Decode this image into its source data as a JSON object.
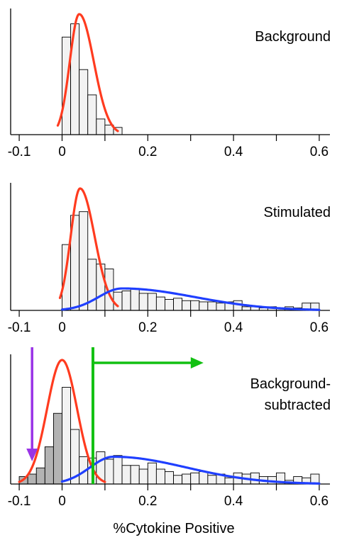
{
  "figure": {
    "xlabel": "%Cytokine Positive"
  },
  "chart_data": [
    {
      "type": "histogram",
      "label": "Background",
      "xlim": [
        -0.12,
        0.62
      ],
      "xticks": [
        -0.1,
        0,
        0.2,
        0.4,
        0.6
      ],
      "tick_labels": [
        "-0.1",
        "0",
        "0.2",
        "0.4",
        "0.6"
      ],
      "bin_width": 0.02,
      "bins_start": [
        0,
        0.02,
        0.04,
        0.06,
        0.08,
        0.1,
        0.12
      ],
      "counts": [
        0.81,
        0.92,
        0.54,
        0.33,
        0.13,
        0.08,
        0.06
      ],
      "curves": [
        {
          "color": "#ff3b1f",
          "center": 0.04,
          "peak": 1.0,
          "sigma_left": 0.022,
          "sigma_right": 0.034,
          "x_from": -0.01,
          "x_to": 0.13
        }
      ],
      "fills": [],
      "arrows": []
    },
    {
      "type": "histogram",
      "label": "Stimulated",
      "xlim": [
        -0.12,
        0.62
      ],
      "xticks": [
        -0.1,
        0,
        0.2,
        0.4,
        0.6
      ],
      "tick_labels": [
        "-0.1",
        "0",
        "0.2",
        "0.4",
        "0.6"
      ],
      "bin_width": 0.02,
      "bins_start": [
        0,
        0.02,
        0.04,
        0.06,
        0.08,
        0.1,
        0.12,
        0.14,
        0.16,
        0.18,
        0.2,
        0.22,
        0.24,
        0.26,
        0.28,
        0.3,
        0.32,
        0.34,
        0.36,
        0.38,
        0.4,
        0.42,
        0.44,
        0.46,
        0.48,
        0.5,
        0.52,
        0.54,
        0.56,
        0.58
      ],
      "counts": [
        0.54,
        0.78,
        0.81,
        0.42,
        0.38,
        0.34,
        0.15,
        0.16,
        0.18,
        0.14,
        0.14,
        0.11,
        0.09,
        0.1,
        0.08,
        0.08,
        0.07,
        0.07,
        0.06,
        0.07,
        0.08,
        0.03,
        0.03,
        0.02,
        0.03,
        0.02,
        0.03,
        0.02,
        0.06,
        0.06
      ],
      "curves": [
        {
          "color": "#ff3b1f",
          "center": 0.042,
          "peak": 1.0,
          "sigma_left": 0.022,
          "sigma_right": 0.034,
          "x_from": -0.005,
          "x_to": 0.13
        },
        {
          "color": "#1f3fff",
          "center": 0.14,
          "peak": 0.18,
          "sigma_left": 0.055,
          "sigma_right": 0.17,
          "x_from": 0.0,
          "x_to": 0.6
        }
      ],
      "fills": [],
      "arrows": []
    },
    {
      "type": "histogram",
      "label": "Background-\nsubtracted",
      "xlim": [
        -0.12,
        0.62
      ],
      "xticks": [
        -0.1,
        0,
        0.2,
        0.4,
        0.6
      ],
      "tick_labels": [
        "-0.1",
        "0",
        "0.2",
        "0.4",
        "0.6"
      ],
      "bin_width": 0.02,
      "bins_start": [
        -0.1,
        -0.08,
        -0.06,
        -0.04,
        -0.02,
        0,
        0.02,
        0.04,
        0.06,
        0.08,
        0.1,
        0.12,
        0.14,
        0.16,
        0.18,
        0.2,
        0.22,
        0.24,
        0.26,
        0.28,
        0.3,
        0.32,
        0.34,
        0.36,
        0.38,
        0.4,
        0.42,
        0.44,
        0.46,
        0.48,
        0.5,
        0.52,
        0.54,
        0.56,
        0.58
      ],
      "counts": [
        0.06,
        0.08,
        0.13,
        0.3,
        0.57,
        0.78,
        0.44,
        0.22,
        0.21,
        0.26,
        0.2,
        0.23,
        0.15,
        0.15,
        0.12,
        0.17,
        0.12,
        0.1,
        0.07,
        0.08,
        0.09,
        0.1,
        0.07,
        0.08,
        0.05,
        0.09,
        0.08,
        0.09,
        0.06,
        0.06,
        0.09,
        0.03,
        0.06,
        0.05,
        0.08
      ],
      "shaded_below": 0.0,
      "shade_color": "#b3b3b3",
      "curves": [
        {
          "color": "#ff3b1f",
          "center": 0.0,
          "peak": 1.0,
          "sigma_left": 0.035,
          "sigma_right": 0.035,
          "x_from": -0.1,
          "x_to": 0.1
        },
        {
          "color": "#1f3fff",
          "center": 0.12,
          "peak": 0.22,
          "sigma_left": 0.055,
          "sigma_right": 0.17,
          "x_from": 0.0,
          "x_to": 0.6
        }
      ],
      "fills": [],
      "arrows": [
        {
          "name": "purple-threshold-arrow",
          "color": "#9933e6",
          "x": -0.07,
          "direction": "down"
        },
        {
          "name": "green-threshold-arrow",
          "color": "#12c012",
          "x": 0.072,
          "direction": "right",
          "to_x": 0.33
        }
      ]
    }
  ]
}
